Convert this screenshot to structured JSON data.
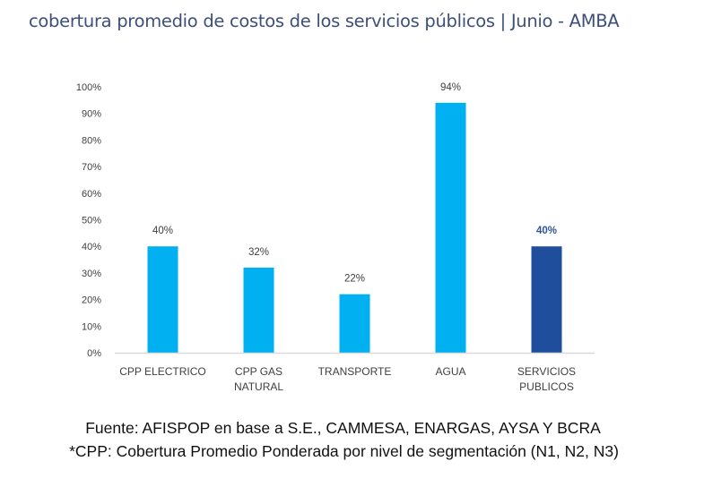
{
  "title": "cobertura promedio de costos de los servicios públicos | Junio - AMBA",
  "footer": {
    "source": "Fuente: AFISPOP en base a S.E., CAMMESA, ENARGAS, AYSA Y BCRA",
    "note": "*CPP: Cobertura Promedio Ponderada por nivel de segmentación (N1, N2, N3)"
  },
  "chart_data": {
    "type": "bar",
    "title": "cobertura promedio de costos de los servicios públicos | Junio - AMBA",
    "xlabel": "",
    "ylabel": "",
    "categories": [
      [
        "CPP ELECTRICO"
      ],
      [
        "CPP GAS",
        "NATURAL"
      ],
      [
        "TRANSPORTE"
      ],
      [
        "AGUA"
      ],
      [
        "SERVICIOS",
        "PUBLICOS"
      ]
    ],
    "values": [
      40,
      32,
      22,
      94,
      40
    ],
    "data_labels": [
      "40%",
      "32%",
      "22%",
      "94%",
      "40%"
    ],
    "ylim": [
      0,
      100
    ],
    "yticks": [
      0,
      10,
      20,
      30,
      40,
      50,
      60,
      70,
      80,
      90,
      100
    ],
    "ytick_labels": [
      "0%",
      "10%",
      "20%",
      "30%",
      "40%",
      "50%",
      "60%",
      "70%",
      "80%",
      "90%",
      "100%"
    ],
    "grid": false,
    "legend": "none",
    "colors": [
      "#00b0f0",
      "#00b0f0",
      "#00b0f0",
      "#00b0f0",
      "#1f4e9c"
    ],
    "highlight_label_color": "#2f5597",
    "label_color": "#404040",
    "axis_color": "#d9d9d9"
  }
}
